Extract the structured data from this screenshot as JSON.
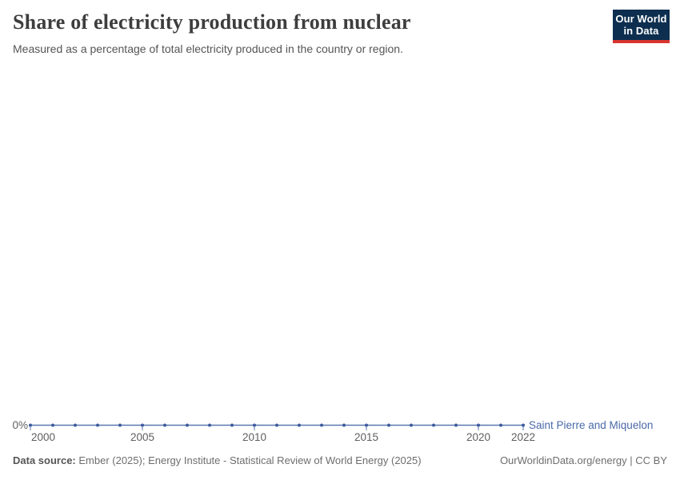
{
  "header": {
    "title": "Share of electricity production from nuclear",
    "subtitle": "Measured as a percentage of total electricity produced in the country or region."
  },
  "logo": {
    "line1": "Our World",
    "line2": "in Data",
    "background_color": "#0d2e4f",
    "accent_color": "#d8352e"
  },
  "chart_data": {
    "type": "line",
    "title": "Share of electricity production from nuclear",
    "entity": "Saint Pierre and Miquelon",
    "x": [
      2000,
      2001,
      2002,
      2003,
      2004,
      2005,
      2006,
      2007,
      2008,
      2009,
      2010,
      2011,
      2012,
      2013,
      2014,
      2015,
      2016,
      2017,
      2018,
      2019,
      2020,
      2021,
      2022
    ],
    "series": [
      {
        "name": "Saint Pierre and Miquelon",
        "values": [
          0,
          0,
          0,
          0,
          0,
          0,
          0,
          0,
          0,
          0,
          0,
          0,
          0,
          0,
          0,
          0,
          0,
          0,
          0,
          0,
          0,
          0,
          0
        ]
      }
    ],
    "unit": "%",
    "ylim": [
      0,
      0
    ],
    "y_tick_labels": [
      "0%"
    ],
    "x_tick_labels": [
      "2000",
      "2005",
      "2010",
      "2015",
      "2020",
      "2022"
    ],
    "grid": false,
    "legend_position": "end-of-line",
    "colors": {
      "line": "#5b79b1",
      "marker": "#3d5c9e",
      "entity_label": "#4a69a8",
      "axis_text": "#5f5f5f"
    }
  },
  "footer": {
    "source_label": "Data source:",
    "source_text": " Ember (2025); Energy Institute - Statistical Review of World Energy (2025)",
    "right_text": "OurWorldinData.org/energy | CC BY"
  }
}
